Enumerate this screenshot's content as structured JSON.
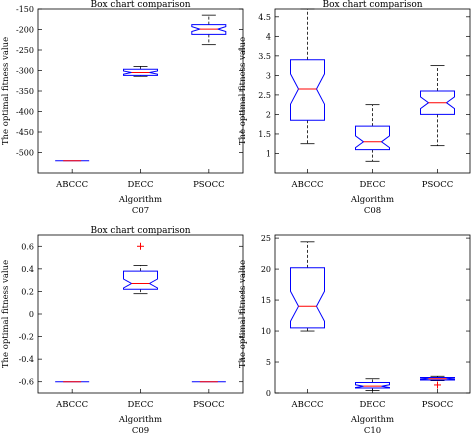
{
  "chart_data": [
    {
      "type": "boxplot",
      "title": "Box chart comparison",
      "xlabel": "Algorithm",
      "sublabel": "C07",
      "ylabel": "The optimal fitness value",
      "categories": [
        "ABCCC",
        "DECC",
        "PSOCC"
      ],
      "ylim": [
        -550,
        -150
      ],
      "yticks": [
        -500,
        -450,
        -400,
        -350,
        -300,
        -250,
        -200,
        -150
      ],
      "boxes": [
        {
          "min": -520,
          "q1": -520,
          "median": -520,
          "q3": -520,
          "max": -520,
          "outliers": []
        },
        {
          "min": -314,
          "q1": -312,
          "median": -305,
          "q3": -297,
          "max": -290,
          "outliers": []
        },
        {
          "min": -237,
          "q1": -212,
          "median": -199,
          "q3": -188,
          "max": -165,
          "outliers": []
        }
      ]
    },
    {
      "type": "boxplot",
      "title": "Box chart comparison",
      "xlabel": "Algorithm",
      "sublabel": "C08",
      "ylabel": "The optimal fitness value",
      "categories": [
        "ABCCC",
        "DECC",
        "PSOCC"
      ],
      "ylim": [
        0.5,
        4.7
      ],
      "yticks": [
        1,
        1.5,
        2,
        2.5,
        3,
        3.5,
        4,
        4.5
      ],
      "boxes": [
        {
          "min": 1.25,
          "q1": 1.85,
          "median": 2.65,
          "q3": 3.4,
          "max": 4.7,
          "outliers": []
        },
        {
          "min": 0.8,
          "q1": 1.1,
          "median": 1.3,
          "q3": 1.7,
          "max": 2.25,
          "outliers": []
        },
        {
          "min": 1.2,
          "q1": 2.0,
          "median": 2.3,
          "q3": 2.6,
          "max": 3.25,
          "outliers": []
        }
      ]
    },
    {
      "type": "boxplot",
      "title": "Box chart comparison",
      "xlabel": "Algorithm",
      "sublabel": "C09",
      "ylabel": "The optimal fitness value",
      "categories": [
        "ABCCC",
        "DECC",
        "PSOCC"
      ],
      "ylim": [
        -0.7,
        0.7
      ],
      "yticks": [
        -0.6,
        -0.4,
        -0.2,
        0,
        0.2,
        0.4,
        0.6
      ],
      "boxes": [
        {
          "min": -0.6,
          "q1": -0.6,
          "median": -0.6,
          "q3": -0.6,
          "max": -0.6,
          "outliers": []
        },
        {
          "min": 0.18,
          "q1": 0.22,
          "median": 0.27,
          "q3": 0.38,
          "max": 0.43,
          "outliers": [
            0.6
          ]
        },
        {
          "min": -0.6,
          "q1": -0.6,
          "median": -0.6,
          "q3": -0.6,
          "max": -0.6,
          "outliers": []
        }
      ]
    },
    {
      "type": "boxplot",
      "title": "",
      "xlabel": "Algorithm",
      "sublabel": "C10",
      "ylabel": "The optimal fitness value",
      "categories": [
        "ABCCC",
        "DECC",
        "PSOCC"
      ],
      "ylim": [
        0,
        25.5
      ],
      "yticks": [
        0,
        5,
        10,
        15,
        20,
        25
      ],
      "boxes": [
        {
          "min": 10,
          "q1": 10.5,
          "median": 14,
          "q3": 20.2,
          "max": 24.4,
          "outliers": []
        },
        {
          "min": 0.4,
          "q1": 0.8,
          "median": 1.1,
          "q3": 1.7,
          "max": 2.3,
          "outliers": []
        },
        {
          "min": 2.0,
          "q1": 2.1,
          "median": 2.3,
          "q3": 2.5,
          "max": 2.7,
          "outliers": [
            1.3
          ]
        }
      ]
    }
  ]
}
